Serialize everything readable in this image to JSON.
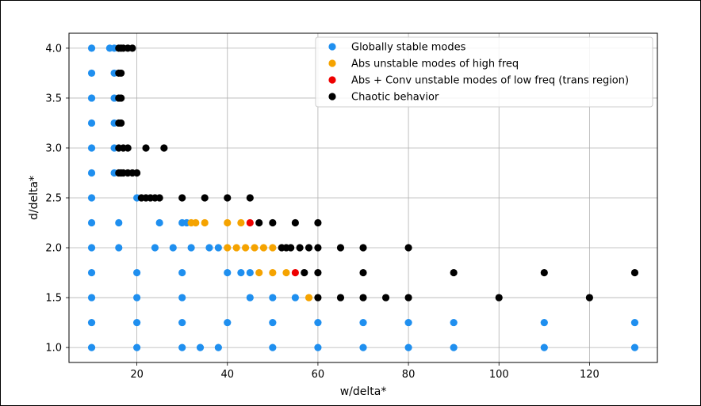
{
  "chart_data": {
    "type": "scatter",
    "xlabel": "w/delta*",
    "ylabel": "d/delta*",
    "xlim": [
      5,
      135
    ],
    "ylim": [
      0.85,
      4.15
    ],
    "xticks": [
      20,
      40,
      60,
      80,
      100,
      120
    ],
    "yticks": [
      1.0,
      1.5,
      2.0,
      2.5,
      3.0,
      3.5,
      4.0
    ],
    "grid": true,
    "legend_position": "top-right",
    "series": [
      {
        "name": "Globally stable modes",
        "color": "#1f8fef",
        "points": [
          [
            10,
            4.0
          ],
          [
            10,
            3.75
          ],
          [
            10,
            3.5
          ],
          [
            10,
            3.25
          ],
          [
            10,
            3.0
          ],
          [
            10,
            2.75
          ],
          [
            10,
            2.5
          ],
          [
            10,
            2.25
          ],
          [
            10,
            2.0
          ],
          [
            10,
            1.75
          ],
          [
            10,
            1.5
          ],
          [
            10,
            1.25
          ],
          [
            10,
            1.0
          ],
          [
            14,
            4.0
          ],
          [
            15,
            4.0
          ],
          [
            15,
            3.75
          ],
          [
            15,
            3.5
          ],
          [
            15,
            3.25
          ],
          [
            15,
            3.0
          ],
          [
            15,
            2.75
          ],
          [
            16,
            2.25
          ],
          [
            16,
            2.0
          ],
          [
            20,
            2.5
          ],
          [
            20,
            1.75
          ],
          [
            20,
            1.5
          ],
          [
            20,
            1.25
          ],
          [
            20,
            1.0
          ],
          [
            24,
            2.0
          ],
          [
            25,
            2.25
          ],
          [
            28,
            2.0
          ],
          [
            30,
            2.25
          ],
          [
            30,
            1.75
          ],
          [
            30,
            1.5
          ],
          [
            30,
            1.25
          ],
          [
            30,
            1.0
          ],
          [
            31,
            2.25
          ],
          [
            32,
            2.0
          ],
          [
            34,
            1.0
          ],
          [
            36,
            2.0
          ],
          [
            38,
            2.0
          ],
          [
            38,
            1.0
          ],
          [
            40,
            1.75
          ],
          [
            40,
            1.25
          ],
          [
            43,
            1.75
          ],
          [
            45,
            1.75
          ],
          [
            45,
            1.5
          ],
          [
            50,
            1.5
          ],
          [
            50,
            1.25
          ],
          [
            50,
            1.0
          ],
          [
            55,
            1.5
          ],
          [
            60,
            1.25
          ],
          [
            60,
            1.0
          ],
          [
            70,
            1.25
          ],
          [
            70,
            1.0
          ],
          [
            80,
            1.25
          ],
          [
            80,
            1.0
          ],
          [
            90,
            1.25
          ],
          [
            90,
            1.0
          ],
          [
            110,
            1.25
          ],
          [
            110,
            1.0
          ],
          [
            130,
            1.25
          ],
          [
            130,
            1.0
          ]
        ]
      },
      {
        "name": "Abs unstable modes of high freq",
        "color": "#f5a300",
        "points": [
          [
            32,
            2.25
          ],
          [
            33,
            2.25
          ],
          [
            35,
            2.25
          ],
          [
            40,
            2.25
          ],
          [
            43,
            2.25
          ],
          [
            40,
            2.0
          ],
          [
            42,
            2.0
          ],
          [
            44,
            2.0
          ],
          [
            46,
            2.0
          ],
          [
            48,
            2.0
          ],
          [
            50,
            2.0
          ],
          [
            47,
            1.75
          ],
          [
            50,
            1.75
          ],
          [
            53,
            1.75
          ],
          [
            58,
            1.5
          ]
        ]
      },
      {
        "name": "Abs + Conv unstable modes of low freq (trans region)",
        "color": "#ee0000",
        "points": [
          [
            45,
            2.25
          ],
          [
            55,
            1.75
          ]
        ]
      },
      {
        "name": "Chaotic behavior",
        "color": "#000000",
        "points": [
          [
            16,
            4.0
          ],
          [
            16.5,
            4.0
          ],
          [
            17,
            4.0
          ],
          [
            18,
            4.0
          ],
          [
            19,
            4.0
          ],
          [
            16,
            3.75
          ],
          [
            16.5,
            3.75
          ],
          [
            16,
            3.5
          ],
          [
            16.5,
            3.5
          ],
          [
            16,
            3.25
          ],
          [
            16.5,
            3.25
          ],
          [
            16,
            3.0
          ],
          [
            17,
            3.0
          ],
          [
            18,
            3.0
          ],
          [
            22,
            3.0
          ],
          [
            26,
            3.0
          ],
          [
            16,
            2.75
          ],
          [
            16.5,
            2.75
          ],
          [
            17,
            2.75
          ],
          [
            18,
            2.75
          ],
          [
            19,
            2.75
          ],
          [
            20,
            2.75
          ],
          [
            21,
            2.5
          ],
          [
            22,
            2.5
          ],
          [
            23,
            2.5
          ],
          [
            24,
            2.5
          ],
          [
            25,
            2.5
          ],
          [
            30,
            2.5
          ],
          [
            35,
            2.5
          ],
          [
            40,
            2.5
          ],
          [
            45,
            2.5
          ],
          [
            47,
            2.25
          ],
          [
            50,
            2.25
          ],
          [
            55,
            2.25
          ],
          [
            60,
            2.25
          ],
          [
            52,
            2.0
          ],
          [
            53,
            2.0
          ],
          [
            54,
            2.0
          ],
          [
            56,
            2.0
          ],
          [
            58,
            2.0
          ],
          [
            60,
            2.0
          ],
          [
            65,
            2.0
          ],
          [
            70,
            2.0
          ],
          [
            80,
            2.0
          ],
          [
            57,
            1.75
          ],
          [
            60,
            1.75
          ],
          [
            70,
            1.75
          ],
          [
            90,
            1.75
          ],
          [
            110,
            1.75
          ],
          [
            130,
            1.75
          ],
          [
            60,
            1.5
          ],
          [
            65,
            1.5
          ],
          [
            70,
            1.5
          ],
          [
            75,
            1.5
          ],
          [
            80,
            1.5
          ],
          [
            100,
            1.5
          ],
          [
            120,
            1.5
          ]
        ]
      }
    ]
  }
}
